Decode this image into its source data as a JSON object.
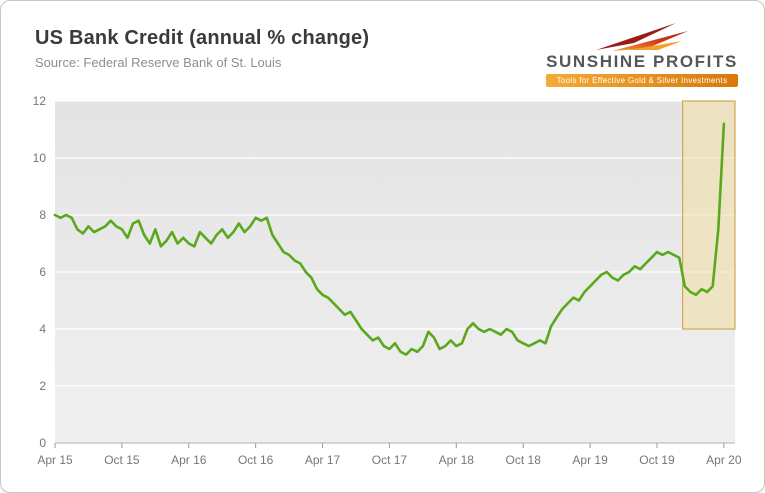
{
  "header": {
    "title": "US Bank Credit (annual % change)",
    "source": "Source: Federal Reserve Bank of St. Louis"
  },
  "logo": {
    "brand": "SUNSHINE PROFITS",
    "tagline": "Tools for Effective Gold & Silver Investments",
    "accent": "#e8820c",
    "arrow_colors": [
      "#9b1c15",
      "#d43a1e",
      "#f0a22b"
    ]
  },
  "chart_data": {
    "type": "line",
    "title": "US Bank Credit (annual % change)",
    "source": "Source: Federal Reserve Bank of St. Louis",
    "x_unit": "months since Apr 2015 (weekly-style series, 0.5-month steps)",
    "x_start": 0,
    "x_step": 0.5,
    "xlim": [
      0,
      61
    ],
    "ylim": [
      0,
      12
    ],
    "grid": true,
    "legend": false,
    "plot_bg": "#e9e9e9",
    "y_ticks": [
      0,
      2,
      4,
      6,
      8,
      10,
      12
    ],
    "x_ticks": [
      {
        "pos": 0,
        "label": "Apr 15"
      },
      {
        "pos": 6,
        "label": "Oct 15"
      },
      {
        "pos": 12,
        "label": "Apr 16"
      },
      {
        "pos": 18,
        "label": "Oct 16"
      },
      {
        "pos": 24,
        "label": "Apr 17"
      },
      {
        "pos": 30,
        "label": "Oct 17"
      },
      {
        "pos": 36,
        "label": "Apr 18"
      },
      {
        "pos": 42,
        "label": "Oct 18"
      },
      {
        "pos": 48,
        "label": "Apr 19"
      },
      {
        "pos": 54,
        "label": "Oct 19"
      },
      {
        "pos": 60,
        "label": "Apr 20"
      }
    ],
    "highlight": {
      "x0": 56.3,
      "x1": 61,
      "y0": 4,
      "y1": 12,
      "fill": "#f3e0a6",
      "stroke": "#cfa84f",
      "note": "highlighted recent period: late-2019 dip and 2020 surge"
    },
    "series": [
      {
        "name": "US Bank Credit annual % change",
        "color": "#5aa81b",
        "values": [
          8.0,
          7.9,
          8.0,
          7.9,
          7.5,
          7.35,
          7.6,
          7.4,
          7.5,
          7.6,
          7.8,
          7.6,
          7.5,
          7.2,
          7.7,
          7.8,
          7.3,
          7.0,
          7.5,
          6.9,
          7.1,
          7.4,
          7.0,
          7.2,
          7.0,
          6.9,
          7.4,
          7.2,
          7.0,
          7.3,
          7.5,
          7.2,
          7.4,
          7.7,
          7.4,
          7.6,
          7.9,
          7.8,
          7.9,
          7.3,
          7.0,
          6.7,
          6.6,
          6.4,
          6.3,
          6.0,
          5.8,
          5.4,
          5.2,
          5.1,
          4.9,
          4.7,
          4.5,
          4.6,
          4.3,
          4.0,
          3.8,
          3.6,
          3.7,
          3.4,
          3.3,
          3.5,
          3.2,
          3.1,
          3.3,
          3.2,
          3.4,
          3.9,
          3.7,
          3.3,
          3.4,
          3.6,
          3.4,
          3.5,
          4.0,
          4.2,
          4.0,
          3.9,
          4.0,
          3.9,
          3.8,
          4.0,
          3.9,
          3.6,
          3.5,
          3.4,
          3.5,
          3.6,
          3.5,
          4.1,
          4.4,
          4.7,
          4.9,
          5.1,
          5.0,
          5.3,
          5.5,
          5.7,
          5.9,
          6.0,
          5.8,
          5.7,
          5.9,
          6.0,
          6.2,
          6.1,
          6.3,
          6.5,
          6.7,
          6.6,
          6.7,
          6.6,
          6.5,
          5.5,
          5.3,
          5.2,
          5.4,
          5.3,
          5.5,
          7.5,
          11.2
        ]
      }
    ]
  }
}
